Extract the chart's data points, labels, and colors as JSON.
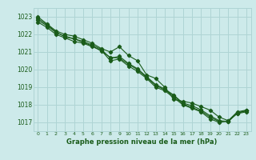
{
  "title": "Graphe pression niveau de la mer (hPa)",
  "background_color": "#cdeaea",
  "grid_color": "#afd4d4",
  "line_color": "#1a5c1a",
  "xlim": [
    -0.5,
    23.5
  ],
  "ylim": [
    1016.5,
    1023.5
  ],
  "yticks": [
    1017,
    1018,
    1019,
    1020,
    1021,
    1022,
    1023
  ],
  "xticks": [
    0,
    1,
    2,
    3,
    4,
    5,
    6,
    7,
    8,
    9,
    10,
    11,
    12,
    13,
    14,
    15,
    16,
    17,
    18,
    19,
    20,
    21,
    22,
    23
  ],
  "series": [
    [
      1023.0,
      1022.6,
      1022.2,
      1022.0,
      1021.9,
      1021.7,
      1021.5,
      1021.2,
      1021.0,
      1021.3,
      1020.8,
      1020.5,
      1019.7,
      1019.5,
      1019.0,
      1018.3,
      1018.2,
      1018.1,
      1017.9,
      1017.7,
      1017.3,
      1017.1,
      1017.5,
      1017.6
    ],
    [
      1022.7,
      1022.4,
      1022.0,
      1021.8,
      1021.6,
      1021.5,
      1021.3,
      1021.1,
      1020.5,
      1020.6,
      1020.2,
      1019.9,
      1019.5,
      1019.0,
      1018.8,
      1018.4,
      1018.0,
      1017.8,
      1017.6,
      1017.2,
      1017.0,
      1017.1,
      1017.6,
      1017.7
    ],
    [
      1022.8,
      1022.5,
      1022.1,
      1021.9,
      1021.75,
      1021.6,
      1021.4,
      1021.15,
      1020.65,
      1020.75,
      1020.35,
      1020.05,
      1019.6,
      1019.15,
      1018.9,
      1018.55,
      1018.1,
      1017.95,
      1017.72,
      1017.38,
      1017.1,
      1017.05,
      1017.52,
      1017.66
    ],
    [
      1022.9,
      1022.55,
      1022.15,
      1021.85,
      1021.75,
      1021.55,
      1021.35,
      1021.05,
      1020.7,
      1020.65,
      1020.3,
      1020.0,
      1019.55,
      1019.1,
      1018.85,
      1018.5,
      1018.05,
      1017.85,
      1017.65,
      1017.3,
      1017.05,
      1017.05,
      1017.55,
      1017.67
    ]
  ],
  "marker": "D",
  "markersize": 2.2,
  "linewidth": 0.8,
  "xlabel_fontsize": 6.0,
  "xtick_fontsize": 4.5,
  "ytick_fontsize": 5.5
}
